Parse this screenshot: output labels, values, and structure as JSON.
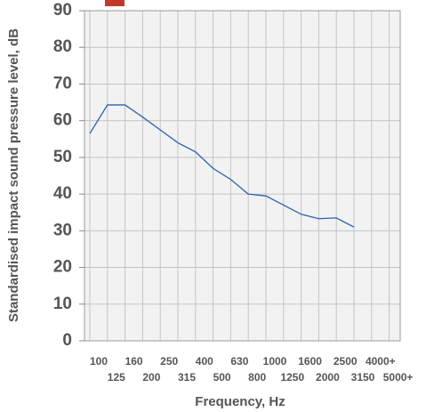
{
  "chart_data": {
    "type": "line",
    "x_label": "Frequency, Hz",
    "y_label": "Standardised impact sound pressure level, dB",
    "categories": [
      "100",
      "125",
      "160",
      "200",
      "250",
      "315",
      "400",
      "500",
      "630",
      "800",
      "1000",
      "1250",
      "1600",
      "2000",
      "2500",
      "3150",
      "4000+",
      "5000+"
    ],
    "values": [
      56.5,
      64.3,
      64.3,
      61,
      57.5,
      54,
      51.5,
      47,
      44,
      40,
      39.5,
      37,
      34.5,
      33.3,
      33.5,
      31,
      null,
      null
    ],
    "color": "#2a62ad",
    "ylim": [
      0,
      90
    ],
    "yticks": [
      0,
      10,
      20,
      30,
      40,
      50,
      60,
      70,
      80,
      90
    ],
    "grid": true
  }
}
